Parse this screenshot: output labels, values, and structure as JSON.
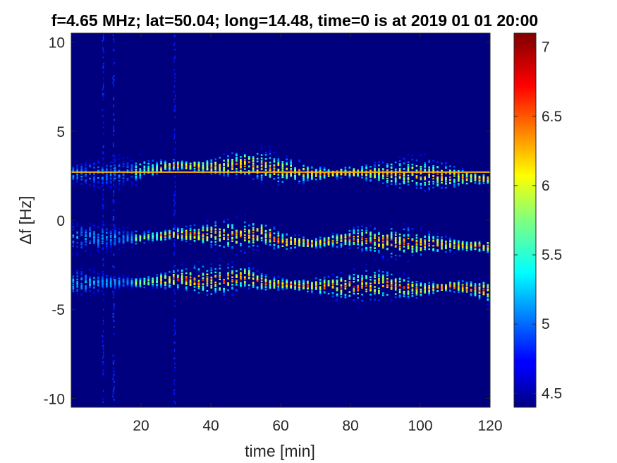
{
  "chart_data": {
    "type": "heatmap",
    "title": "f=4.65 MHz;  lat=50.04; long=14.48, time=0 is at 2019 01 01 20:00",
    "xlabel": "time [min]",
    "ylabel_prefix": "Δ",
    "ylabel_rest": "f [Hz]",
    "xlim": [
      0,
      120
    ],
    "ylim": [
      -10.5,
      10.5
    ],
    "x_ticks": [
      20,
      40,
      60,
      80,
      100,
      120
    ],
    "y_ticks": [
      10,
      5,
      0,
      -5,
      -10
    ],
    "y_tick_labels": [
      "10",
      "5",
      "0",
      "-5",
      "-10"
    ],
    "colorbar": {
      "colormap": "jet",
      "range": [
        4.4,
        7.1
      ],
      "ticks": [
        4.5,
        5,
        5.5,
        6,
        6.5,
        7
      ],
      "tick_labels": [
        "4.5",
        "5",
        "5.5",
        "6",
        "6.5",
        "7"
      ]
    },
    "background_value": 4.45,
    "carrier_line": {
      "y": 2.7,
      "value": 6.3
    },
    "bands": [
      {
        "name": "",
        "x": [
          0,
          10,
          20,
          30,
          40,
          50,
          55,
          60,
          70,
          80,
          90,
          100,
          110,
          120
        ],
        "y": [
          2.6,
          2.6,
          2.8,
          3.1,
          3.0,
          3.2,
          3.0,
          2.8,
          2.6,
          2.7,
          2.6,
          2.6,
          2.4,
          2.3
        ],
        "peak_value": 6.6
      },
      {
        "name": "",
        "x": [
          0,
          10,
          20,
          30,
          40,
          50,
          55,
          60,
          70,
          80,
          90,
          100,
          110,
          120
        ],
        "y": [
          -1.0,
          -1.0,
          -1.0,
          -0.8,
          -0.8,
          -0.9,
          -0.7,
          -1.2,
          -1.3,
          -1.0,
          -1.2,
          -1.3,
          -1.4,
          -1.5
        ],
        "peak_value": 6.7
      },
      {
        "name": "",
        "x": [
          0,
          10,
          20,
          30,
          40,
          50,
          55,
          60,
          70,
          80,
          90,
          100,
          110,
          120
        ],
        "y": [
          -3.5,
          -3.5,
          -3.5,
          -3.3,
          -3.4,
          -3.2,
          -3.5,
          -3.6,
          -3.7,
          -3.7,
          -3.6,
          -3.9,
          -3.7,
          -4.0
        ],
        "peak_value": 6.8
      }
    ]
  }
}
